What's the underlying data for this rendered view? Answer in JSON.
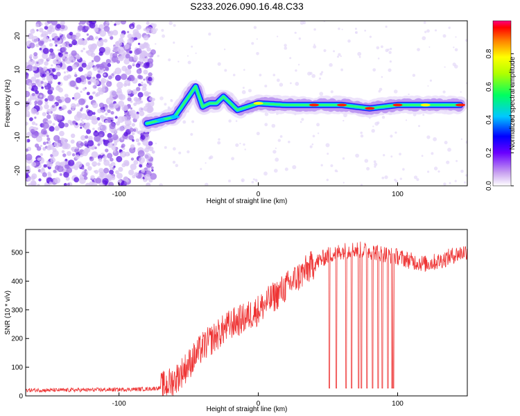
{
  "chart_data": [
    {
      "type": "heatmap",
      "title": "S233.2026.090.16.48.C33",
      "xlabel": "Height of straight line (km)",
      "ylabel": "Frequency (Hz)",
      "xlim": [
        -167,
        150
      ],
      "ylim": [
        -24.5,
        24.5
      ],
      "xticks": [
        -100,
        0,
        100
      ],
      "yticks": [
        -20,
        -10,
        0,
        10,
        20
      ],
      "colorbar": {
        "label": "Normalized spectral amplitude",
        "range": [
          0,
          1
        ],
        "ticks": [
          0.0,
          0.2,
          0.4,
          0.6,
          0.8
        ]
      },
      "ridge": {
        "description_points_x": [
          -80,
          -70,
          -60,
          -50,
          -45,
          -40,
          -35,
          -30,
          -25,
          -20,
          -15,
          0,
          20,
          40,
          60,
          80,
          100,
          120,
          145
        ],
        "description_points_y": [
          -6,
          -5,
          -4,
          2,
          5,
          -1,
          0,
          0,
          2,
          0,
          -2,
          0,
          -0.5,
          -0.5,
          -0.5,
          -1.5,
          -0.5,
          -0.5,
          -0.5
        ]
      }
    },
    {
      "type": "line",
      "xlabel": "Height of straight line (km)",
      "ylabel": "SNR (10 * v/v)",
      "xlim": [
        -167,
        150
      ],
      "ylim": [
        0,
        580
      ],
      "xticks": [
        -100,
        0,
        100
      ],
      "yticks": [
        0,
        100,
        200,
        300,
        400,
        500
      ],
      "color": "#ee3333",
      "envelope_x": [
        -167,
        -140,
        -100,
        -80,
        -70,
        -60,
        -50,
        -40,
        -30,
        -20,
        -10,
        0,
        10,
        20,
        30,
        40,
        50,
        60,
        70,
        80,
        90,
        100,
        110,
        120,
        130,
        140,
        150
      ],
      "envelope_y": [
        20,
        20,
        22,
        24,
        28,
        55,
        110,
        170,
        210,
        250,
        270,
        300,
        340,
        380,
        420,
        460,
        490,
        505,
        510,
        505,
        495,
        485,
        470,
        460,
        470,
        490,
        505
      ],
      "dropouts_x": [
        51,
        56,
        63,
        67,
        72,
        74,
        78,
        82,
        86,
        89,
        93,
        96,
        97
      ],
      "dropout_level": 27
    }
  ]
}
